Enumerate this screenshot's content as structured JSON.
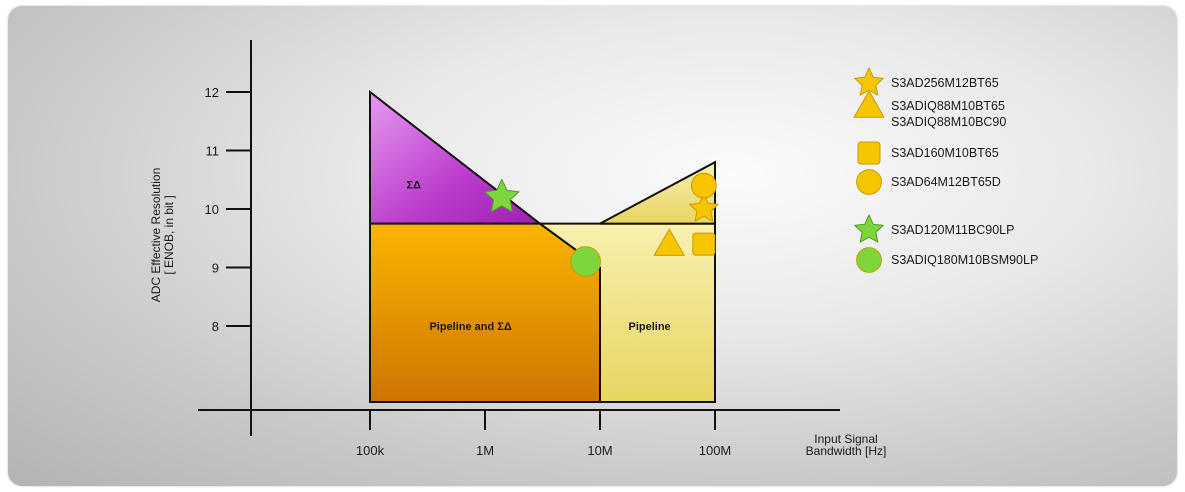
{
  "chart_data": {
    "type": "area",
    "x_scale": "log",
    "xlabel": [
      "Input Signal",
      "Bandwidth [Hz]"
    ],
    "ylabel": [
      "ADC Effective Resolution",
      "[ ENOB, in bit ]"
    ],
    "x_ticks": [
      {
        "value": 100000,
        "label": "100k"
      },
      {
        "value": 1000000,
        "label": "1M"
      },
      {
        "value": 10000000,
        "label": "10M"
      },
      {
        "value": 100000000,
        "label": "100M"
      }
    ],
    "y_ticks": [
      8,
      9,
      10,
      11,
      12
    ],
    "regions": [
      {
        "name": "ΣΔ",
        "label": "ΣΔ",
        "color": "#b534c4",
        "vertices": [
          [
            100000,
            12
          ],
          [
            100000,
            9.75
          ],
          [
            3000000,
            9.75
          ]
        ]
      },
      {
        "name": "Pipeline and ΣΔ",
        "label": "Pipeline and  ΣΔ",
        "color": "#f0a400",
        "vertices": [
          [
            100000,
            9.75
          ],
          [
            3000000,
            9.75
          ],
          [
            10000000,
            9
          ],
          [
            10000000,
            6.7
          ],
          [
            100000,
            6.7
          ]
        ]
      },
      {
        "name": "Pipeline",
        "label": "Pipeline",
        "color": "#f2e48c",
        "vertices": [
          [
            10000000,
            9
          ],
          [
            3000000,
            9.75
          ],
          [
            100000000,
            9.75
          ],
          [
            100000000,
            6.7
          ],
          [
            10000000,
            6.7
          ]
        ]
      },
      {
        "name": "Pipeline high",
        "label": "",
        "color": "#f2e48c",
        "vertices": [
          [
            10000000,
            9.75
          ],
          [
            100000000,
            10.8
          ],
          [
            100000000,
            9.75
          ]
        ]
      }
    ],
    "points": [
      {
        "part": "S3AD120M11BC90LP",
        "x": 1400000,
        "y": 10.2,
        "marker": "star",
        "color": "#7fd63c"
      },
      {
        "part": "S3ADIQ180M10BSM90LP",
        "x": 7500000,
        "y": 9.1,
        "marker": "circle",
        "color": "#7fd63c"
      },
      {
        "part": "S3ADIQ88M10BT65",
        "x": 40000000,
        "y": 9.4,
        "marker": "triangle",
        "color": "#f6c500"
      },
      {
        "part": "S3AD160M10BT65",
        "x": 80000000,
        "y": 9.4,
        "marker": "square",
        "color": "#f6c500"
      },
      {
        "part": "S3AD256M12BT65",
        "x": 80000000,
        "y": 10.0,
        "marker": "star",
        "color": "#f6c500"
      },
      {
        "part": "S3AD64M12BT65D",
        "x": 80000000,
        "y": 10.4,
        "marker": "circle",
        "color": "#f6c500"
      }
    ],
    "legend": [
      {
        "marker": "star",
        "color": "#f6c500",
        "labels": [
          "S3AD256M12BT65"
        ]
      },
      {
        "marker": "triangle",
        "color": "#f6c500",
        "labels": [
          "S3ADIQ88M10BT65",
          "S3ADIQ88M10BC90"
        ]
      },
      {
        "marker": "square",
        "color": "#f6c500",
        "labels": [
          "S3AD160M10BT65"
        ]
      },
      {
        "marker": "circle",
        "color": "#f6c500",
        "labels": [
          "S3AD64M12BT65D"
        ]
      },
      {
        "marker": "star",
        "color": "#7fd63c",
        "labels": [
          "S3AD120M11BC90LP"
        ]
      },
      {
        "marker": "circle",
        "color": "#7fd63c",
        "labels": [
          "S3ADIQ180M10BSM90LP"
        ]
      }
    ],
    "legend_position": "right",
    "grid": false
  }
}
